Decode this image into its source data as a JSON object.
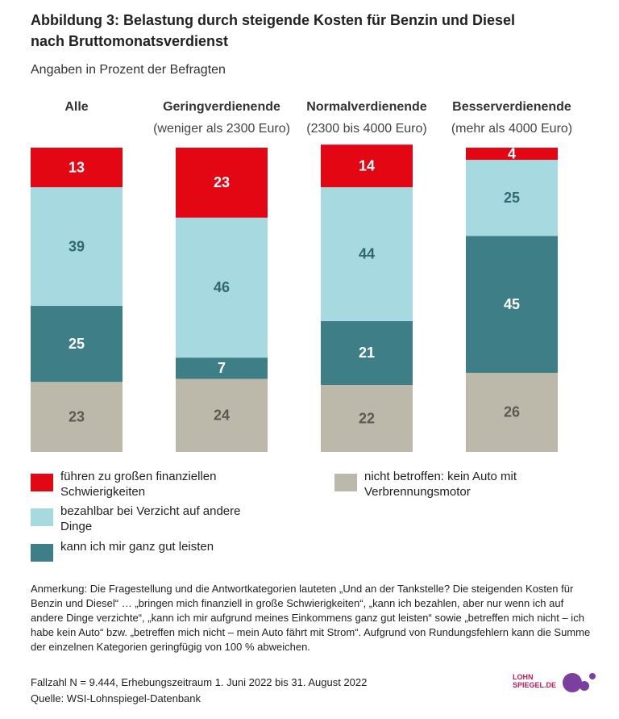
{
  "chart_data": {
    "type": "stacked_bar",
    "title_lines": [
      "Abbildung 3: Belastung durch steigende Kosten für Benzin und Diesel",
      "nach Bruttomonatsverdienst"
    ],
    "subtitle": "Angaben in Prozent der Befragten",
    "categories": [
      "Alle",
      "Geringverdienende",
      "Normalverdienende",
      "Besserverdienende"
    ],
    "category_subtitles": [
      null,
      "(weniger als 2300 Euro)",
      "(2300 bis 4000 Euro)",
      "(mehr als 4000 Euro)"
    ],
    "ylim": [
      0,
      100
    ],
    "series": [
      {
        "name": "nicht betroffen: kein Auto mit Verbrennungsmotor",
        "color": "#bcb9aa",
        "label_color": "#5a5a52",
        "values": [
          23,
          24,
          22,
          26
        ]
      },
      {
        "name": "kann ich mir ganz gut leisten",
        "color": "#3e7f87",
        "label_color": "#ffffff",
        "values": [
          25,
          7,
          21,
          45
        ]
      },
      {
        "name": "bezahlbar bei Verzicht auf andere Dinge",
        "color": "#a7d9e1",
        "label_color": "#2e6a72",
        "values": [
          39,
          46,
          44,
          25
        ]
      },
      {
        "name": "führen zu großen finanziellen Schwierigkeiten",
        "color": "#e30613",
        "label_color": "#ffffff",
        "values": [
          13,
          23,
          14,
          4
        ]
      }
    ],
    "legend_order": [
      3,
      2,
      1,
      0
    ]
  },
  "note": "Anmerkung: Die Fragestellung und die Antwortkategorien lauteten „Und an der Tankstelle? Die steigenden Kosten für Benzin und Diesel“ … „bringen mich finanziell in große Schwierigkeiten“, „kann ich bezahlen, aber nur wenn ich auf andere Dinge verzichte“, „kann ich mir aufgrund meines Einkommens ganz gut leisten“ sowie „betreffen mich nicht – ich habe kein Auto“ bzw. „betreffen mich nicht – mein Auto fährt mit Strom“. Aufgrund von Rundungsfehlern kann die Summe der einzelnen Kategorien geringfügig von 100 % abweichen.",
  "footer": {
    "sample": "Fallzahl N = 9.444, Erhebungszeitraum 1. Juni 2022 bis 31. August 2022",
    "source": "Quelle: WSI-Lohnspiegel-Datenbank"
  },
  "logo": {
    "line1": "LOHN",
    "line2": "SPIEGEL.DE"
  }
}
